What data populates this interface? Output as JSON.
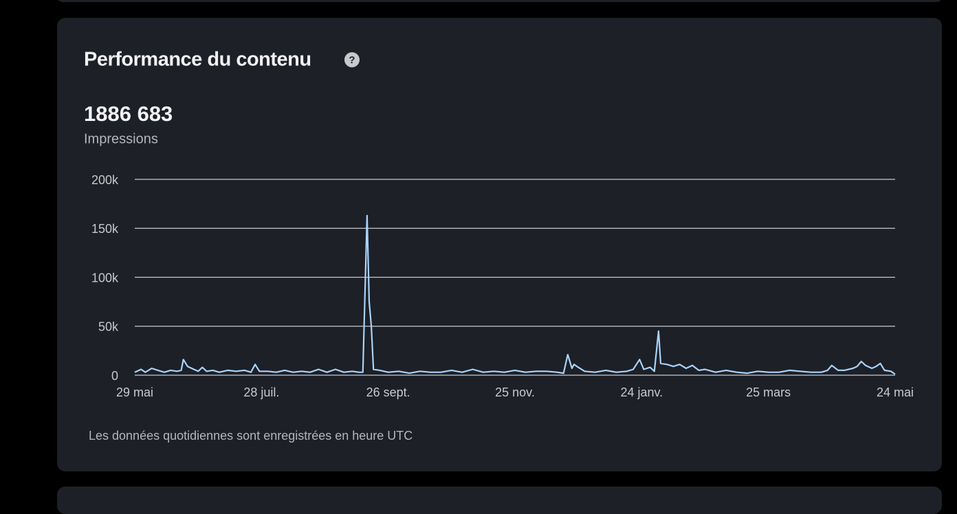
{
  "header": {
    "title": "Performance du contenu"
  },
  "summary": {
    "total": "1886 683",
    "metric": "Impressions"
  },
  "footnote": "Les données quotidiennes sont enregistrées en heure UTC",
  "chart_data": {
    "type": "line",
    "x": [
      0,
      3,
      5,
      8,
      11,
      14,
      17,
      20,
      22,
      23,
      25,
      28,
      30,
      32,
      34,
      37,
      40,
      44,
      48,
      52,
      55,
      57,
      59,
      63,
      67,
      71,
      75,
      79,
      83,
      87,
      91,
      95,
      99,
      103,
      106,
      108,
      110,
      111,
      112,
      113,
      116,
      120,
      125,
      130,
      135,
      140,
      145,
      150,
      155,
      160,
      165,
      170,
      175,
      180,
      185,
      190,
      195,
      200,
      203,
      205,
      207,
      208,
      210,
      213,
      218,
      223,
      228,
      233,
      236,
      239,
      241,
      244,
      246,
      248,
      249,
      252,
      255,
      258,
      261,
      264,
      267,
      270,
      275,
      280,
      285,
      290,
      295,
      300,
      305,
      310,
      315,
      320,
      325,
      328,
      330,
      333,
      336,
      340,
      342,
      344,
      346,
      349,
      351,
      353,
      355,
      358,
      360
    ],
    "series": [
      {
        "name": "Impressions",
        "color": "#a9d3ff",
        "values": [
          3000,
          6000,
          3000,
          7000,
          5000,
          3000,
          5000,
          4000,
          5000,
          16000,
          9000,
          6000,
          4000,
          8000,
          4000,
          5000,
          3000,
          5000,
          4000,
          5000,
          3000,
          11000,
          4000,
          4000,
          3000,
          5000,
          3000,
          4000,
          3000,
          6000,
          3000,
          6000,
          3000,
          4000,
          3000,
          3000,
          163000,
          75000,
          50000,
          6000,
          5000,
          3000,
          4000,
          2000,
          4000,
          3000,
          3000,
          5000,
          3000,
          6000,
          3000,
          4000,
          3000,
          5000,
          3000,
          4000,
          4000,
          3000,
          2000,
          21000,
          7000,
          11000,
          8000,
          4000,
          3000,
          5000,
          3000,
          4000,
          6000,
          16000,
          6000,
          8000,
          4000,
          45000,
          12000,
          11000,
          9000,
          11000,
          7000,
          10000,
          5000,
          6000,
          3000,
          5000,
          3000,
          2000,
          4000,
          3000,
          3000,
          5000,
          4000,
          3000,
          3000,
          5000,
          10000,
          5000,
          5000,
          7000,
          9000,
          14000,
          10000,
          7000,
          9000,
          12000,
          5000,
          4000,
          1000
        ]
      }
    ],
    "xlim": [
      0,
      360
    ],
    "xticks": [
      {
        "value": 0,
        "label": "29 mai"
      },
      {
        "value": 60,
        "label": "28 juil."
      },
      {
        "value": 120,
        "label": "26 sept."
      },
      {
        "value": 180,
        "label": "25 nov."
      },
      {
        "value": 240,
        "label": "24 janv."
      },
      {
        "value": 300,
        "label": "25 mars"
      },
      {
        "value": 360,
        "label": "24 mai"
      }
    ],
    "ylim": [
      0,
      200000
    ],
    "yticks": [
      0,
      {
        "value": 50000,
        "label": "50k"
      },
      {
        "value": 100000,
        "label": "100k"
      },
      {
        "value": 150000,
        "label": "150k"
      },
      {
        "value": 200000,
        "label": "200k"
      }
    ],
    "grid": true
  }
}
